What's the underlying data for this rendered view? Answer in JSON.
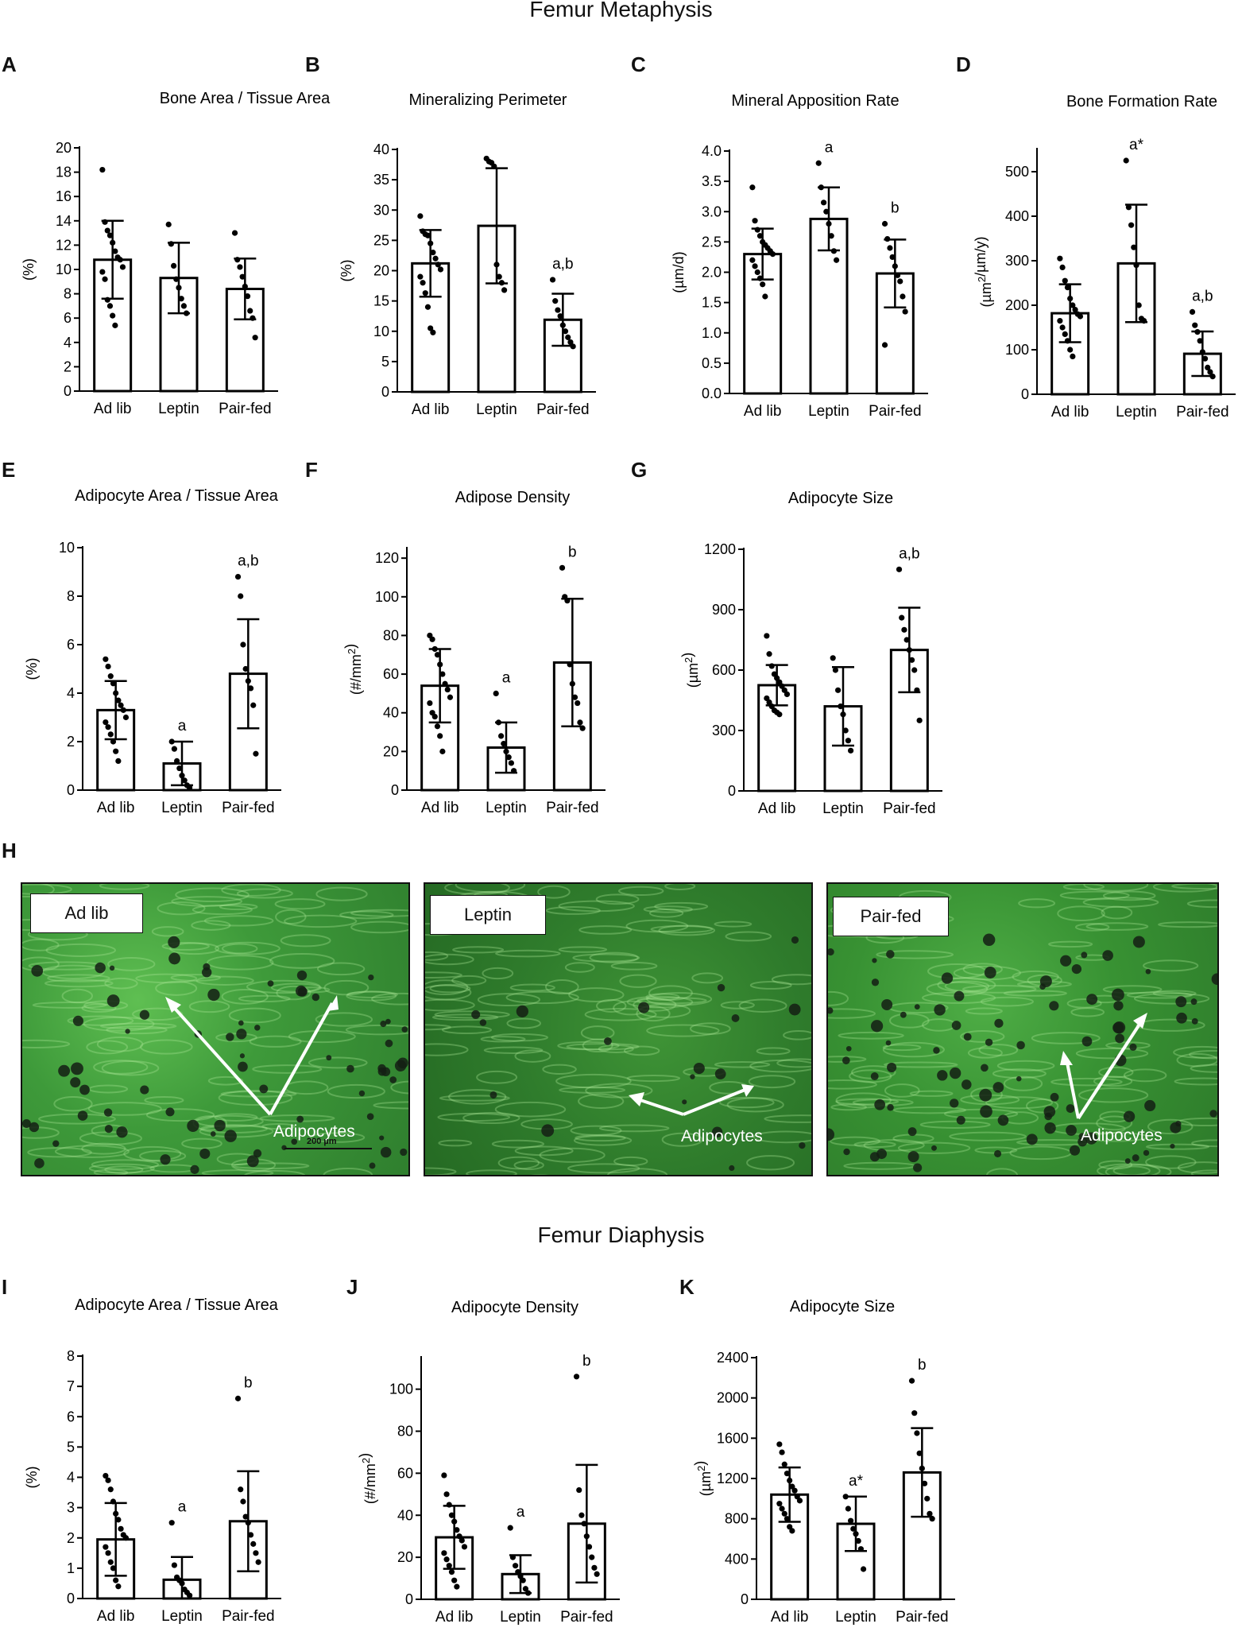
{
  "sections": {
    "metaphysis_title": "Femur Metaphysis",
    "diaphysis_title": "Femur Diaphysis"
  },
  "letters": {
    "A": "A",
    "B": "B",
    "C": "C",
    "D": "D",
    "E": "E",
    "F": "F",
    "G": "G",
    "H": "H",
    "I": "I",
    "J": "J",
    "K": "K"
  },
  "micrographs": [
    {
      "label": "Ad lib",
      "annotation": "Adipocytes",
      "scale_text": "200 µm"
    },
    {
      "label": "Leptin",
      "annotation": "Adipocytes"
    },
    {
      "label": "Pair-fed",
      "annotation": "Adipocytes"
    }
  ],
  "colors": {
    "bar_fill": "#ffffff",
    "bar_stroke": "#000000",
    "point": "#000000",
    "tissue_green": "#3e9a3a"
  },
  "chart_data": [
    {
      "id": "A",
      "type": "bar",
      "title": "Bone Area / Tissue Area",
      "ylabel": "(%)",
      "ylim": [
        0,
        20
      ],
      "yticks": [
        0,
        2,
        4,
        6,
        8,
        10,
        12,
        14,
        16,
        18,
        20
      ],
      "categories": [
        "Ad lib",
        "Leptin",
        "Pair-fed"
      ],
      "values": [
        10.8,
        9.3,
        8.4
      ],
      "sd": [
        3.2,
        2.9,
        2.5
      ],
      "annotations": [
        "",
        "",
        ""
      ],
      "points": [
        [
          18.2,
          13.9,
          13.2,
          12.8,
          12.2,
          11.5,
          11.0,
          10.8,
          10.2,
          9.8,
          9.2,
          7.5,
          7.0,
          6.2,
          5.4
        ],
        [
          13.7,
          12.1,
          10.3,
          9.2,
          8.5,
          7.6,
          7.0,
          6.4
        ],
        [
          13.0,
          10.8,
          10.2,
          9.4,
          8.6,
          7.8,
          6.6,
          6.0,
          4.4
        ]
      ]
    },
    {
      "id": "B",
      "type": "bar",
      "title": "Mineralizing Perimeter",
      "ylabel": "(%)",
      "ylim": [
        0,
        40
      ],
      "yticks": [
        0,
        5,
        10,
        15,
        20,
        25,
        30,
        35,
        40
      ],
      "categories": [
        "Ad lib",
        "Leptin",
        "Pair-fed"
      ],
      "values": [
        21.2,
        27.4,
        11.9
      ],
      "sd": [
        5.5,
        9.5,
        4.3
      ],
      "annotations": [
        "",
        "",
        "a,b"
      ],
      "points": [
        [
          29.0,
          26.5,
          26.0,
          25.8,
          24.5,
          23.0,
          22.0,
          21.0,
          20.2,
          19.0,
          18.0,
          16.3,
          14.0,
          10.5,
          9.8
        ],
        [
          38.5,
          38.0,
          37.8,
          37.2,
          21.0,
          19.0,
          18.0,
          16.8
        ],
        [
          18.5,
          15.0,
          13.5,
          12.5,
          11.0,
          10.0,
          9.0,
          8.2,
          7.5
        ]
      ]
    },
    {
      "id": "C",
      "type": "bar",
      "title": "Mineral Apposition Rate",
      "ylabel": "(µm/d)",
      "ylim": [
        0,
        4
      ],
      "yticks": [
        "0.0",
        "0.5",
        "1.0",
        "1.5",
        "2.0",
        "2.5",
        "3.0",
        "3.5",
        "4.0"
      ],
      "categories": [
        "Ad lib",
        "Leptin",
        "Pair-fed"
      ],
      "values": [
        2.3,
        2.88,
        1.98
      ],
      "sd": [
        0.42,
        0.52,
        0.56
      ],
      "annotations": [
        "",
        "a",
        "b"
      ],
      "points": [
        [
          3.4,
          2.85,
          2.7,
          2.6,
          2.5,
          2.45,
          2.4,
          2.35,
          2.3,
          2.2,
          2.1,
          2.0,
          1.9,
          1.8,
          1.6
        ],
        [
          3.8,
          3.4,
          3.15,
          3.0,
          2.8,
          2.6,
          2.35,
          2.2
        ],
        [
          2.8,
          2.55,
          2.4,
          2.25,
          2.1,
          1.95,
          1.85,
          1.6,
          1.35,
          0.8
        ]
      ]
    },
    {
      "id": "D",
      "type": "bar",
      "title": "Bone Formation Rate",
      "ylabel": "(µm²/µm/y)",
      "ylim": [
        0,
        550
      ],
      "yticks": [
        0,
        100,
        200,
        300,
        400,
        500
      ],
      "categories": [
        "Ad lib",
        "Leptin",
        "Pair-fed"
      ],
      "values": [
        182,
        294,
        91
      ],
      "sd": [
        65,
        132,
        50
      ],
      "annotations": [
        "",
        "a*",
        "a,b"
      ],
      "points": [
        [
          305,
          285,
          255,
          240,
          215,
          200,
          190,
          180,
          175,
          165,
          150,
          135,
          120,
          100,
          85
        ],
        [
          525,
          420,
          380,
          330,
          290,
          200,
          170,
          165
        ],
        [
          185,
          155,
          140,
          120,
          95,
          80,
          60,
          50,
          40
        ]
      ]
    },
    {
      "id": "E",
      "type": "bar",
      "title": "Adipocyte Area / Tissue Area",
      "ylabel": "(%)",
      "ylim": [
        0,
        10
      ],
      "yticks": [
        0,
        2,
        4,
        6,
        8,
        10
      ],
      "categories": [
        "Ad lib",
        "Leptin",
        "Pair-fed"
      ],
      "values": [
        3.3,
        1.1,
        4.8
      ],
      "sd": [
        1.2,
        0.9,
        2.25
      ],
      "annotations": [
        "",
        "a",
        "a,b"
      ],
      "points": [
        [
          5.4,
          5.1,
          4.7,
          4.4,
          4.0,
          3.7,
          3.5,
          3.3,
          3.0,
          2.8,
          2.6,
          2.3,
          2.0,
          1.6,
          1.2
        ],
        [
          2.0,
          1.7,
          1.2,
          0.9,
          0.6,
          0.4,
          0.2,
          0.1
        ],
        [
          8.8,
          8.0,
          6.0,
          5.0,
          4.5,
          4.2,
          3.5,
          1.5
        ]
      ]
    },
    {
      "id": "F",
      "type": "bar",
      "title": "Adipose Density",
      "ylabel": "(#/mm²)",
      "ylim": [
        0,
        125
      ],
      "yticks": [
        0,
        20,
        40,
        60,
        80,
        100,
        120
      ],
      "categories": [
        "Ad lib",
        "Leptin",
        "Pair-fed"
      ],
      "values": [
        54,
        22,
        66
      ],
      "sd": [
        19,
        13,
        33
      ],
      "annotations": [
        "",
        "a",
        "b"
      ],
      "points": [
        [
          80,
          78,
          73,
          70,
          65,
          60,
          55,
          52,
          48,
          45,
          40,
          38,
          33,
          28,
          20
        ],
        [
          50,
          35,
          28,
          24,
          20,
          17,
          14,
          10
        ],
        [
          115,
          100,
          98,
          65,
          55,
          48,
          45,
          35,
          32
        ]
      ]
    },
    {
      "id": "G",
      "type": "bar",
      "title": "Adipocyte Size",
      "ylabel": "(µm²)",
      "ylim": [
        0,
        1200
      ],
      "yticks": [
        0,
        300,
        600,
        900,
        1200
      ],
      "categories": [
        "Ad lib",
        "Leptin",
        "Pair-fed"
      ],
      "values": [
        525,
        420,
        700
      ],
      "sd": [
        100,
        195,
        210
      ],
      "annotations": [
        "",
        "",
        "a,b"
      ],
      "points": [
        [
          770,
          680,
          620,
          580,
          560,
          540,
          520,
          500,
          480,
          460,
          440,
          420,
          400,
          390,
          380
        ],
        [
          660,
          600,
          500,
          420,
          380,
          300,
          250,
          200
        ],
        [
          1100,
          860,
          800,
          750,
          700,
          650,
          600,
          500,
          350
        ]
      ]
    },
    {
      "id": "I",
      "type": "bar",
      "title": "Adipocyte Area / Tissue Area",
      "ylabel": "(%)",
      "ylim": [
        0,
        8
      ],
      "yticks": [
        0,
        1,
        2,
        3,
        4,
        5,
        6,
        7,
        8
      ],
      "categories": [
        "Ad lib",
        "Leptin",
        "Pair-fed"
      ],
      "values": [
        1.95,
        0.62,
        2.55
      ],
      "sd": [
        1.2,
        0.75,
        1.65
      ],
      "annotations": [
        "",
        "a",
        "b"
      ],
      "points": [
        [
          4.05,
          3.9,
          3.6,
          3.2,
          2.8,
          2.6,
          2.3,
          2.1,
          2.0,
          1.7,
          1.5,
          1.2,
          1.0,
          0.6,
          0.4
        ],
        [
          2.5,
          1.1,
          0.7,
          0.6,
          0.5,
          0.3,
          0.2,
          0.1
        ],
        [
          6.6,
          3.6,
          3.2,
          2.7,
          2.5,
          2.1,
          1.8,
          1.5,
          1.2
        ]
      ]
    },
    {
      "id": "J",
      "type": "bar",
      "title": "Adipocyte Density",
      "ylabel": "(#/mm²)",
      "ylim": [
        0,
        115
      ],
      "yticks": [
        0,
        20,
        40,
        60,
        80,
        100
      ],
      "categories": [
        "Ad lib",
        "Leptin",
        "Pair-fed"
      ],
      "values": [
        29.5,
        12,
        36
      ],
      "sd": [
        15,
        9,
        28
      ],
      "annotations": [
        "",
        "a",
        "b"
      ],
      "points": [
        [
          59,
          50,
          45,
          40,
          37,
          33,
          30,
          28,
          25,
          22,
          19,
          16,
          13,
          9,
          6
        ],
        [
          34,
          20,
          16,
          13,
          11,
          9,
          5,
          3
        ],
        [
          106,
          52,
          40,
          36,
          30,
          25,
          20,
          15,
          12
        ]
      ]
    },
    {
      "id": "K",
      "type": "bar",
      "title": "Adipocyte Size",
      "ylabel": "(µm²)",
      "ylim": [
        0,
        2400
      ],
      "yticks": [
        0,
        400,
        800,
        1200,
        1600,
        2000,
        2400
      ],
      "categories": [
        "Ad lib",
        "Leptin",
        "Pair-fed"
      ],
      "values": [
        1040,
        750,
        1260
      ],
      "sd": [
        270,
        270,
        440
      ],
      "annotations": [
        "",
        "a*",
        "b"
      ],
      "points": [
        [
          1540,
          1460,
          1340,
          1250,
          1180,
          1120,
          1080,
          1020,
          980,
          950,
          900,
          850,
          800,
          720,
          680
        ],
        [
          1020,
          900,
          780,
          700,
          650,
          580,
          500,
          300
        ],
        [
          2170,
          1850,
          1650,
          1450,
          1300,
          1150,
          1000,
          850,
          800
        ]
      ]
    }
  ]
}
